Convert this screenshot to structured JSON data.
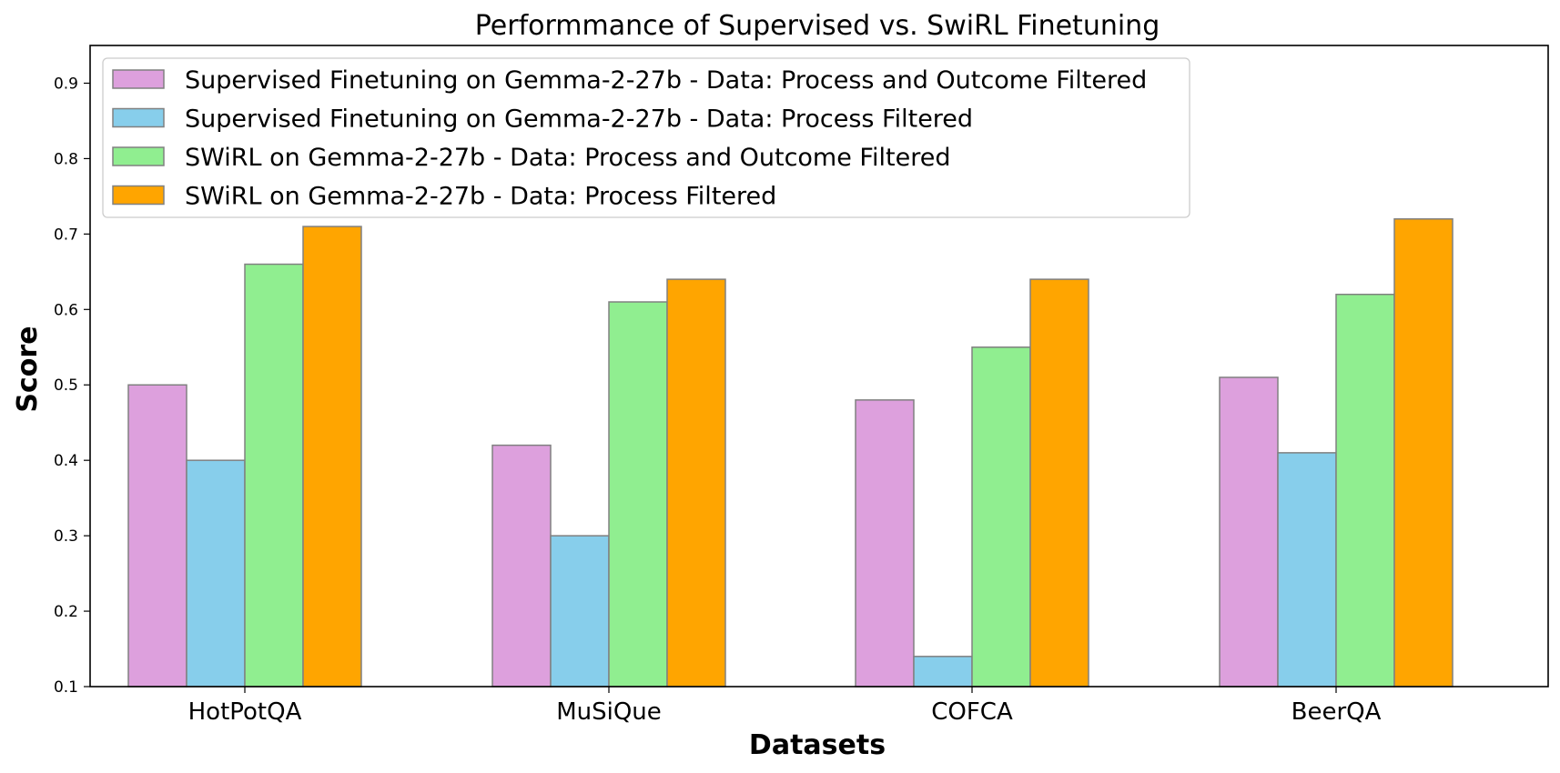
{
  "chart_data": {
    "type": "bar",
    "title": "Performmance of Supervised vs. SwiRL Finetuning",
    "xlabel": "Datasets",
    "ylabel": "Score",
    "ylim": [
      0.1,
      0.95
    ],
    "yticks": [
      "0.1",
      "0.2",
      "0.3",
      "0.4",
      "0.5",
      "0.6",
      "0.7",
      "0.8",
      "0.9"
    ],
    "categories": [
      "HotPotQA",
      "MuSiQue",
      "COFCA",
      "BeerQA"
    ],
    "grid": false,
    "legend_position": "top-left",
    "series": [
      {
        "name": "Supervised Finetuning on Gemma-2-27b - Data: Process and Outcome Filtered",
        "color": "#dda0dd",
        "values": [
          0.5,
          0.42,
          0.48,
          0.51
        ]
      },
      {
        "name": "Supervised Finetuning on Gemma-2-27b - Data: Process Filtered",
        "color": "#87ceeb",
        "values": [
          0.4,
          0.3,
          0.14,
          0.41
        ]
      },
      {
        "name": "SWiRL on Gemma-2-27b - Data: Process and Outcome Filtered",
        "color": "#90ee90",
        "values": [
          0.66,
          0.61,
          0.55,
          0.62
        ]
      },
      {
        "name": "SWiRL on Gemma-2-27b - Data: Process Filtered",
        "color": "#ffa500",
        "values": [
          0.71,
          0.64,
          0.64,
          0.72
        ]
      }
    ],
    "bar_edge_color": "#808080"
  }
}
